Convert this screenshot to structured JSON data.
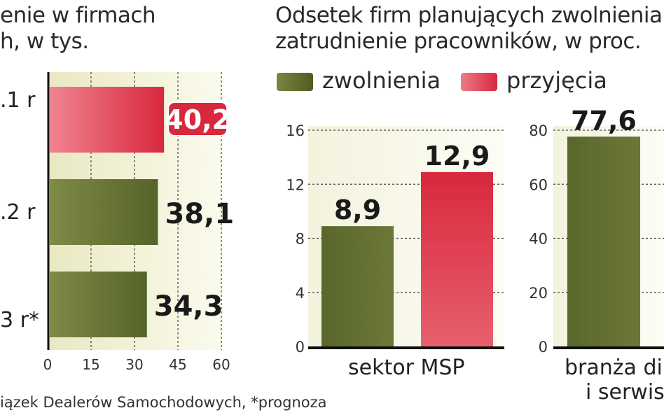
{
  "left_chart": {
    "title_line1": "enie w firmach",
    "title_line2": "h, w tys.",
    "footer": "iązek Dealerów Samochodowych, *prognoza"
  },
  "right_chart": {
    "title_line1": "Odsetek firm planujących zwolnienia",
    "title_line2": "zatrudnienie pracowników, w proc.",
    "legend": [
      "zwolnienia",
      "przyjęcia"
    ],
    "panel1_category": "sektor MSP",
    "panel2_category_line1": "branża dil",
    "panel2_category_line2": "i serwis"
  },
  "colors": {
    "zwolnienia": "#5e6b2e",
    "przyjecia": "#d8283d",
    "plot_bg": "#f1f0d2"
  },
  "chart_data": [
    {
      "type": "bar",
      "orientation": "horizontal",
      "categories": [
        ".1 r",
        ".2 r",
        "3 r*"
      ],
      "values": [
        40.2,
        38.1,
        34.3
      ],
      "value_labels": [
        "40,2",
        "38,1",
        "34,3"
      ],
      "bar_colors": [
        "przyjecia",
        "zwolnienia",
        "zwolnienia"
      ],
      "xlim": [
        0,
        60
      ],
      "xticks": [
        0,
        15,
        30,
        45,
        60
      ],
      "grid": true
    },
    {
      "type": "bar",
      "categories": [
        "sektor MSP"
      ],
      "series": [
        {
          "name": "zwolnienia",
          "values": [
            8.9
          ],
          "label": "8,9"
        },
        {
          "name": "przyjęcia",
          "values": [
            12.9
          ],
          "label": "12,9"
        }
      ],
      "ylim": [
        0,
        16
      ],
      "yticks": [
        0,
        4,
        8,
        12,
        16
      ],
      "grid": true
    },
    {
      "type": "bar",
      "categories": [
        "branża dil i serwis"
      ],
      "series": [
        {
          "name": "zwolnienia",
          "values": [
            77.6
          ],
          "label": "77,6"
        }
      ],
      "ylim": [
        0,
        80
      ],
      "yticks": [
        0,
        20,
        40,
        60,
        80
      ],
      "grid": true
    }
  ]
}
